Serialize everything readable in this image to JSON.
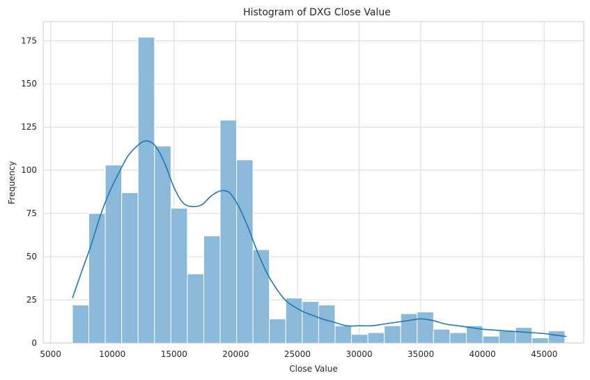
{
  "chart_data": {
    "type": "bar",
    "subtype": "histogram-with-kde",
    "title": "Histogram of DXG Close Value",
    "xlabel": "Close Value",
    "ylabel": "Frequency",
    "xlim": [
      4400,
      48200
    ],
    "ylim": [
      0,
      186
    ],
    "xticks": [
      5000,
      10000,
      15000,
      20000,
      25000,
      30000,
      35000,
      40000,
      45000
    ],
    "yticks": [
      0,
      25,
      50,
      75,
      100,
      125,
      150,
      175
    ],
    "grid": true,
    "bar_color": "#8ab9da",
    "line_color": "#1f77b4",
    "bin_edges": [
      6770,
      8100,
      9430,
      10760,
      12090,
      13420,
      14750,
      16080,
      17410,
      18740,
      20070,
      21400,
      22730,
      24060,
      25390,
      26720,
      28050,
      29380,
      30710,
      32040,
      33370,
      34700,
      36030,
      37360,
      38690,
      40020,
      41350,
      42680,
      44010,
      45340,
      46670
    ],
    "counts": [
      22,
      75,
      103,
      87,
      177,
      114,
      78,
      40,
      62,
      129,
      106,
      54,
      14,
      26,
      24,
      22,
      10,
      5,
      6,
      10,
      17,
      18,
      8,
      6,
      10,
      4,
      7,
      9,
      3,
      7
    ],
    "kde": {
      "x": [
        6770,
        7500,
        8250,
        9000,
        9750,
        10500,
        11250,
        12000,
        12750,
        13500,
        14250,
        15000,
        15750,
        16500,
        17250,
        18000,
        18750,
        19500,
        20250,
        21000,
        21750,
        22500,
        23250,
        24000,
        24750,
        25500,
        26250,
        27000,
        28000,
        29000,
        30000,
        31000,
        32000,
        33000,
        34000,
        35000,
        36000,
        37000,
        38000,
        39000,
        40000,
        41000,
        42000,
        43000,
        44000,
        45000,
        46000,
        46800
      ],
      "y": [
        26,
        41,
        56,
        73,
        87,
        98,
        108,
        114,
        117,
        114,
        104,
        90,
        81,
        79,
        80,
        85,
        88,
        87,
        79,
        67,
        53,
        41,
        32,
        25,
        21,
        18,
        16,
        14,
        12,
        10,
        10,
        10,
        11,
        12,
        13,
        14,
        13,
        11,
        10,
        9,
        8,
        7.5,
        7,
        6.5,
        6,
        5.5,
        4.5,
        3.8
      ]
    }
  }
}
